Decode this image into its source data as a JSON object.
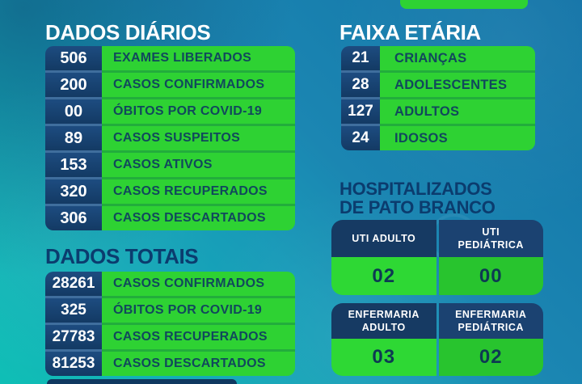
{
  "colors": {
    "background_blue": "#1273a7",
    "background_teal": "#0fbfb6",
    "accent_green": "#2ed233",
    "accent_green_dark": "#28c42e",
    "box_navy": "#173c67",
    "heading_navy": "#0b3c6e",
    "heading_white": "#ffffff",
    "label_text": "#11485c"
  },
  "sections": {
    "dados_diarios": {
      "title": "DADOS DIÁRIOS",
      "rows": [
        {
          "value": "506",
          "label": "EXAMES LIBERADOS"
        },
        {
          "value": "200",
          "label": "CASOS CONFIRMADOS"
        },
        {
          "value": "00",
          "label": "ÓBITOS POR COVID-19"
        },
        {
          "value": "89",
          "label": "CASOS SUSPEITOS"
        },
        {
          "value": "153",
          "label": "CASOS ATIVOS"
        },
        {
          "value": "320",
          "label": "CASOS RECUPERADOS"
        },
        {
          "value": "306",
          "label": "CASOS DESCARTADOS"
        }
      ]
    },
    "dados_totais": {
      "title": "DADOS TOTAIS",
      "rows": [
        {
          "value": "28261",
          "label": "CASOS CONFIRMADOS"
        },
        {
          "value": "325",
          "label": "ÓBITOS POR COVID-19"
        },
        {
          "value": "27783",
          "label": "CASOS RECUPERADOS"
        },
        {
          "value": "81253",
          "label": "CASOS DESCARTADOS"
        }
      ]
    },
    "faixa_etaria": {
      "title": "FAIXA ETÁRIA",
      "rows": [
        {
          "value": "21",
          "label": "CRIANÇAS"
        },
        {
          "value": "28",
          "label": "ADOLESCENTES"
        },
        {
          "value": "127",
          "label": "ADULTOS"
        },
        {
          "value": "24",
          "label": "IDOSOS"
        }
      ]
    },
    "hospitalizados": {
      "title_line1": "HOSPITALIZADOS",
      "title_line2": "DE PATO BRANCO",
      "tables": [
        {
          "cells": [
            {
              "header": "UTI ADULTO",
              "value": "02"
            },
            {
              "header": "UTI PEDIÁTRICA",
              "value": "00"
            }
          ]
        },
        {
          "cells": [
            {
              "header": "ENFERMARIA ADULTO",
              "value": "03"
            },
            {
              "header": "ENFERMARIA PEDIÁTRICA",
              "value": "02"
            }
          ]
        }
      ]
    }
  }
}
